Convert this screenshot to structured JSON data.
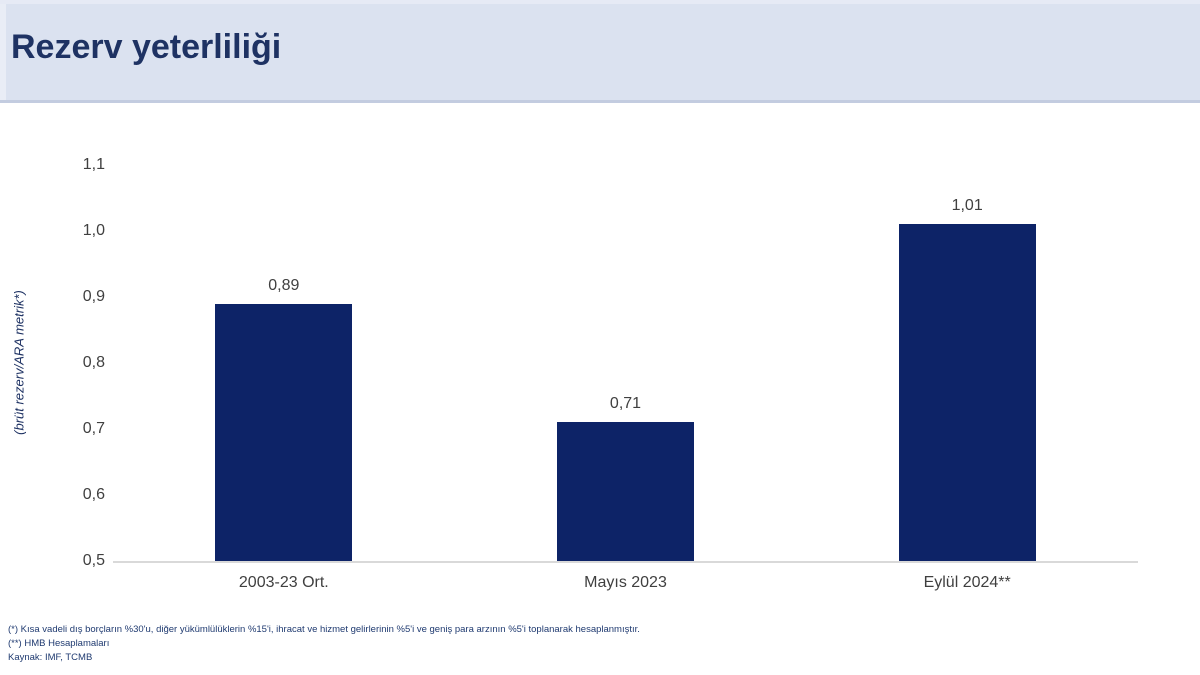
{
  "header": {
    "title": "Rezerv yeterliliği"
  },
  "chart_data": {
    "type": "bar",
    "title": "",
    "categories": [
      "2003-23 Ort.",
      "Mayıs 2023",
      "Eylül 2024**"
    ],
    "values": [
      0.89,
      0.71,
      1.01
    ],
    "value_labels": [
      "0,89",
      "0,71",
      "1,01"
    ],
    "ylabel": "(brüt rezerv/ARA metrik*)",
    "xlabel": "",
    "ylim": [
      0.5,
      1.1
    ],
    "ytick_step": 0.1,
    "ytick_labels": [
      "0,5",
      "0,6",
      "0,7",
      "0,8",
      "0,9",
      "1,0",
      "1,1"
    ],
    "grid": "off",
    "legend": "none",
    "bar_color": "#0d2367",
    "axis_line_color": "#d9d9d9",
    "decimal_separator": ","
  },
  "footnotes": [
    "(*) Kısa vadeli dış borçların %30'u, diğer yükümlülüklerin %15'i, ihracat ve hizmet gelirlerinin %5'i ve geniş para arzının %5'i toplanarak hesaplanmıştır.",
    "(**) HMB Hesaplamaları",
    "Kaynak: IMF, TCMB"
  ]
}
